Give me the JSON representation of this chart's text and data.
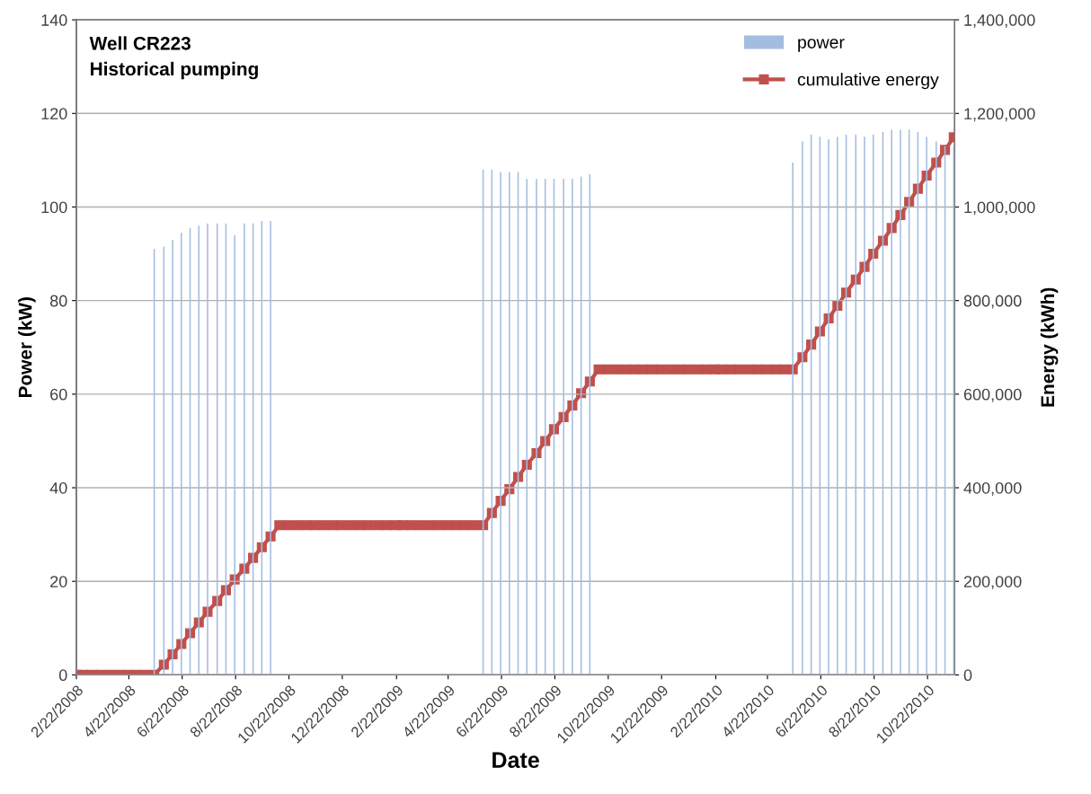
{
  "chart_data": {
    "type": "bar",
    "title": "Well CR223\nHistorical pumping",
    "xlabel": "Date",
    "ylabel": "Power (kW)",
    "y2label": "Energy (kWh)",
    "xlim": [
      "2008-02-22",
      "2010-11-22"
    ],
    "xticks": [
      {
        "value": "2008-02-22",
        "label": "2/22/2008"
      },
      {
        "value": "2008-04-22",
        "label": "4/22/2008"
      },
      {
        "value": "2008-06-22",
        "label": "6/22/2008"
      },
      {
        "value": "2008-08-22",
        "label": "8/22/2008"
      },
      {
        "value": "2008-10-22",
        "label": "10/22/2008"
      },
      {
        "value": "2008-12-22",
        "label": "12/22/2008"
      },
      {
        "value": "2009-02-22",
        "label": "2/22/2009"
      },
      {
        "value": "2009-04-22",
        "label": "4/22/2009"
      },
      {
        "value": "2009-06-22",
        "label": "6/22/2009"
      },
      {
        "value": "2009-08-22",
        "label": "8/22/2009"
      },
      {
        "value": "2009-10-22",
        "label": "10/22/2009"
      },
      {
        "value": "2009-12-22",
        "label": "12/22/2009"
      },
      {
        "value": "2010-02-22",
        "label": "2/22/2010"
      },
      {
        "value": "2010-04-22",
        "label": "4/22/2010"
      },
      {
        "value": "2010-06-22",
        "label": "6/22/2010"
      },
      {
        "value": "2010-08-22",
        "label": "8/22/2010"
      },
      {
        "value": "2010-10-22",
        "label": "10/22/2010"
      }
    ],
    "ylim": [
      0,
      140
    ],
    "yticks": [
      0,
      20,
      40,
      60,
      80,
      100,
      120,
      140
    ],
    "y2lim": [
      0,
      1400000
    ],
    "y2ticks": [
      {
        "value": 0,
        "label": "0"
      },
      {
        "value": 200000,
        "label": "200,000"
      },
      {
        "value": 400000,
        "label": "400,000"
      },
      {
        "value": 600000,
        "label": "600,000"
      },
      {
        "value": 800000,
        "label": "800,000"
      },
      {
        "value": 1000000,
        "label": "1,000,000"
      },
      {
        "value": 1200000,
        "label": "1,200,000"
      },
      {
        "value": 1400000,
        "label": "1,400,000"
      }
    ],
    "grid": "y",
    "legend": "top right",
    "series": [
      {
        "name": "power",
        "color": "#a3bde0",
        "x": [
          "2008-05-21",
          "2008-06-01",
          "2008-06-11",
          "2008-06-21",
          "2008-07-01",
          "2008-07-11",
          "2008-07-21",
          "2008-08-01",
          "2008-08-11",
          "2008-08-21",
          "2008-09-01",
          "2008-09-11",
          "2008-09-21",
          "2008-10-01",
          "2009-06-01",
          "2009-06-11",
          "2009-06-21",
          "2009-07-01",
          "2009-07-11",
          "2009-07-21",
          "2009-08-01",
          "2009-08-11",
          "2009-08-21",
          "2009-09-01",
          "2009-09-11",
          "2009-09-21",
          "2009-10-01",
          "2010-05-21",
          "2010-06-01",
          "2010-06-11",
          "2010-06-21",
          "2010-07-01",
          "2010-07-11",
          "2010-07-21",
          "2010-08-01",
          "2010-08-11",
          "2010-08-21",
          "2010-09-01",
          "2010-09-11",
          "2010-09-21",
          "2010-10-01",
          "2010-10-11",
          "2010-10-21",
          "2010-11-01",
          "2010-11-11",
          "2010-11-21"
        ],
        "values": [
          91,
          91.5,
          93,
          94.5,
          95.5,
          96,
          96.5,
          96.5,
          96.5,
          94,
          96.5,
          96.5,
          97,
          97,
          108,
          108,
          107.5,
          107.5,
          107.5,
          106,
          106,
          106,
          106,
          106,
          106,
          106.5,
          107,
          109.5,
          114,
          115.5,
          115,
          114.5,
          115,
          115.5,
          115.5,
          115,
          115.5,
          116,
          116.5,
          116.5,
          116.5,
          116,
          115,
          114,
          113,
          113
        ]
      },
      {
        "name": "cumulative energy",
        "type": "line",
        "axis": "y2",
        "color": "#c0504d",
        "marker": "square",
        "x": [
          "2008-02-22",
          "2008-03-01",
          "2008-03-11",
          "2008-03-21",
          "2008-04-01",
          "2008-04-11",
          "2008-04-21",
          "2008-05-01",
          "2008-05-11",
          "2008-05-21",
          "2008-06-01",
          "2008-06-11",
          "2008-06-21",
          "2008-07-01",
          "2008-07-11",
          "2008-07-21",
          "2008-08-01",
          "2008-08-11",
          "2008-08-21",
          "2008-09-01",
          "2008-09-11",
          "2008-09-21",
          "2008-10-01",
          "2008-10-11",
          "2008-10-21",
          "2008-11-01",
          "2008-11-11",
          "2008-11-21",
          "2008-12-01",
          "2008-12-11",
          "2008-12-21",
          "2009-01-01",
          "2009-01-11",
          "2009-01-21",
          "2009-02-01",
          "2009-02-11",
          "2009-02-21",
          "2009-03-01",
          "2009-03-11",
          "2009-03-21",
          "2009-04-01",
          "2009-04-11",
          "2009-04-21",
          "2009-05-01",
          "2009-05-11",
          "2009-05-21",
          "2009-06-01",
          "2009-06-11",
          "2009-06-21",
          "2009-07-01",
          "2009-07-11",
          "2009-07-21",
          "2009-08-01",
          "2009-08-11",
          "2009-08-21",
          "2009-09-01",
          "2009-09-11",
          "2009-09-21",
          "2009-10-01",
          "2009-10-11",
          "2009-10-21",
          "2009-11-01",
          "2009-11-11",
          "2009-11-21",
          "2009-12-01",
          "2009-12-11",
          "2009-12-21",
          "2010-01-01",
          "2010-01-11",
          "2010-01-21",
          "2010-02-01",
          "2010-02-11",
          "2010-02-21",
          "2010-03-01",
          "2010-03-11",
          "2010-03-21",
          "2010-04-01",
          "2010-04-11",
          "2010-04-21",
          "2010-05-01",
          "2010-05-11",
          "2010-05-21",
          "2010-06-01",
          "2010-06-11",
          "2010-06-21",
          "2010-07-01",
          "2010-07-11",
          "2010-07-21",
          "2010-08-01",
          "2010-08-11",
          "2010-08-21",
          "2010-09-01",
          "2010-09-11",
          "2010-09-21",
          "2010-10-01",
          "2010-10-11",
          "2010-10-21",
          "2010-11-01",
          "2010-11-11",
          "2010-11-21"
        ],
        "values": [
          0,
          0,
          0,
          0,
          0,
          0,
          0,
          0,
          0,
          0,
          22000,
          44000,
          66000,
          89000,
          112000,
          135000,
          158000,
          181000,
          204000,
          227000,
          250000,
          273000,
          296000,
          320000,
          320000,
          320000,
          320000,
          320000,
          320000,
          320000,
          320000,
          320000,
          320000,
          320000,
          320000,
          320000,
          320000,
          320000,
          320000,
          320000,
          320000,
          320000,
          320000,
          320000,
          320000,
          320000,
          320000,
          346000,
          372000,
          397000,
          423000,
          449000,
          474000,
          500000,
          525000,
          551000,
          576000,
          602000,
          627000,
          653000,
          653000,
          653000,
          653000,
          653000,
          653000,
          653000,
          653000,
          653000,
          653000,
          653000,
          653000,
          653000,
          653000,
          653000,
          653000,
          653000,
          653000,
          653000,
          653000,
          653000,
          653000,
          653000,
          679000,
          706000,
          734000,
          762000,
          789000,
          817000,
          845000,
          872000,
          900000,
          928000,
          955000,
          983000,
          1011000,
          1039000,
          1067000,
          1095000,
          1122000,
          1149000
        ]
      }
    ]
  }
}
